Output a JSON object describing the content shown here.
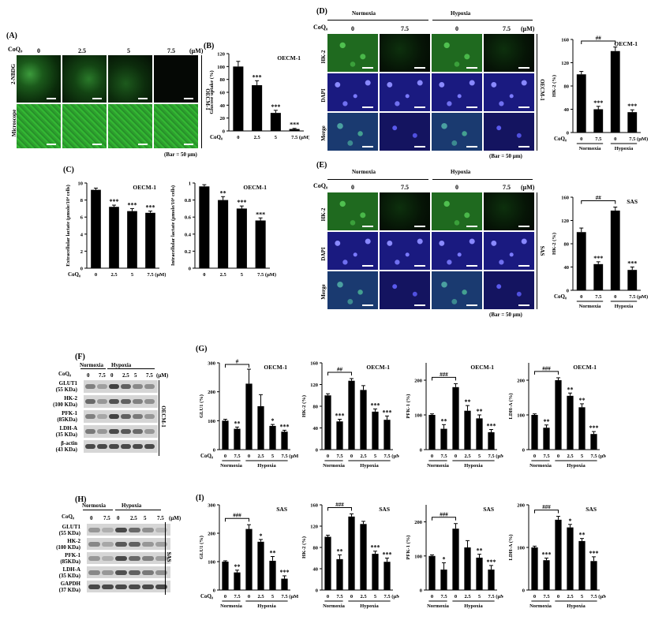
{
  "panelA": {
    "label": "(A)",
    "coq_label": "CoQ₀",
    "concs": [
      "0",
      "2.5",
      "5",
      "7.5"
    ],
    "unit": "(μM)",
    "rows": [
      "2-NBDG",
      "Microscope"
    ],
    "cell_line": "OECM-1",
    "bar": "(Bar = 50 μm)"
  },
  "panelB": {
    "label": "(B)",
    "title": "OECM-1",
    "ylabel": "Glucose uptake (%)",
    "coq_label": "CoQ₀",
    "categories": [
      "0",
      "2.5",
      "5",
      "7.5 (μM)"
    ],
    "sig": [
      "",
      "***",
      "***",
      "***"
    ]
  },
  "panelC": {
    "label": "(C)",
    "left_title": "OECM-1",
    "left_ylabel": "Extracellular lactate (μmole/10⁴ cells)",
    "right_title": "OECM-1",
    "right_ylabel": "Intracellular lactate (μmole/10⁴ cells)",
    "coq_label": "CoQ₀",
    "categories": [
      "0",
      "2.5",
      "5",
      "7.5 (μM)"
    ],
    "left_sig": [
      "",
      "***",
      "***",
      "***"
    ],
    "right_sig": [
      "",
      "**",
      "***",
      "***"
    ]
  },
  "panelD": {
    "label": "(D)",
    "normoxia": "Normoxia",
    "hypoxia": "Hypoxia",
    "coq_label": "CoQ₀",
    "concs": [
      "0",
      "7.5",
      "0",
      "7.5"
    ],
    "unit": "(μM)",
    "rows": [
      "HK-2",
      "DAPI",
      "Merge"
    ],
    "cell_line": "OECM-1",
    "bar": "(Bar = 50 μm)",
    "chart_title": "OECM-1",
    "chart_ylabel": "HK-2 (%)",
    "chart_x": [
      "0",
      "7.5",
      "0",
      "7.5 (μM)"
    ],
    "chart_groups": [
      "Normoxia",
      "Hypoxia"
    ],
    "bracket": "##",
    "sig": [
      "",
      "***",
      "",
      "***"
    ]
  },
  "panelE": {
    "label": "(E)",
    "normoxia": "Normoxia",
    "hypoxia": "Hypoxia",
    "coq_label": "CoQ₀",
    "concs": [
      "0",
      "7.5",
      "0",
      "7.5"
    ],
    "unit": "(μM)",
    "rows": [
      "HK-2",
      "DAPI",
      "Merge"
    ],
    "cell_line": "SAS",
    "bar": "(Bar = 50 μm)",
    "chart_title": "SAS",
    "chart_ylabel": "HK-2 (%)",
    "chart_x": [
      "0",
      "7.5",
      "0",
      "7.5 (μM)"
    ],
    "chart_groups": [
      "Normoxia",
      "Hypoxia"
    ],
    "bracket": "##",
    "sig": [
      "",
      "***",
      "",
      "***"
    ]
  },
  "panelF": {
    "label": "(F)",
    "normoxia": "Normoxia",
    "hypoxia": "Hypoxia",
    "coq_label": "CoQ₀",
    "concs": [
      "0",
      "7.5",
      "0",
      "2.5",
      "5",
      "7.5"
    ],
    "unit": "(μM)",
    "proteins": [
      "GLUT1",
      "HK-2",
      "PFK-1",
      "LDH-A",
      "β-actin"
    ],
    "sizes": [
      "(55 KDa)",
      "(100 KDa)",
      "(85KDa)",
      "(35 KDa)",
      "(43 KDa)"
    ],
    "cell_line": "OECM-1"
  },
  "panelH": {
    "label": "(H)",
    "normoxia": "Normoxia",
    "hypoxia": "Hypoxia",
    "coq_label": "CoQ₀",
    "concs": [
      "0",
      "7.5",
      "0",
      "2.5",
      "5",
      "7.5"
    ],
    "unit": "(μM)",
    "proteins": [
      "GLUT1",
      "HK-2",
      "PFK-1",
      "LDH-A",
      "GAPDH"
    ],
    "sizes": [
      "(55 KDa)",
      "(100 KDa)",
      "(85KDa)",
      "(35 KDa)",
      "(37 KDa)"
    ],
    "cell_line": "SAS"
  },
  "panelG": {
    "label": "(G)",
    "coq_label": "CoQ₀",
    "x": [
      "0",
      "7.5",
      "0",
      "2.5",
      "5",
      "7.5 (μM)"
    ],
    "groups": [
      "Normoxia",
      "Hypoxia"
    ],
    "charts": [
      {
        "title": "OECM-1",
        "ylabel": "GLU1 (%)",
        "bracket": "#",
        "sig": [
          "",
          "**",
          "",
          "",
          "*",
          "***"
        ]
      },
      {
        "title": "OECM-1",
        "ylabel": "HK-2 (%)",
        "bracket": "##",
        "sig": [
          "",
          "***",
          "",
          "",
          "***",
          "***"
        ]
      },
      {
        "title": "OECM-1",
        "ylabel": "PFK-1 (%)",
        "bracket": "###",
        "sig": [
          "",
          "**",
          "",
          "**",
          "**",
          "***"
        ]
      },
      {
        "title": "OECM-1",
        "ylabel": "LDH-A (%)",
        "bracket": "###",
        "sig": [
          "",
          "**",
          "",
          "**",
          "**",
          "***"
        ]
      }
    ]
  },
  "panelI": {
    "label": "(I)",
    "coq_label": "CoQ₀",
    "x": [
      "0",
      "7.5",
      "0",
      "2.5",
      "5",
      "7.5 (μM)"
    ],
    "groups": [
      "Normoxia",
      "Hypoxia"
    ],
    "charts": [
      {
        "title": "SAS",
        "ylabel": "GLU1 (%)",
        "bracket": "###",
        "sig": [
          "",
          "**",
          "",
          "*",
          "**",
          "***"
        ]
      },
      {
        "title": "SAS",
        "ylabel": "HK-2 (%)",
        "bracket": "###",
        "sig": [
          "",
          "**",
          "",
          "",
          "***",
          "***"
        ]
      },
      {
        "title": "SAS",
        "ylabel": "PFK-1 (%)",
        "bracket": "###",
        "sig": [
          "",
          "*",
          "",
          "",
          "**",
          "***"
        ]
      },
      {
        "title": "SAS",
        "ylabel": "LDH-A (%)",
        "bracket": "###",
        "sig": [
          "",
          "***",
          "",
          "*",
          "**",
          "***"
        ]
      }
    ]
  },
  "chart_data": [
    {
      "type": "bar",
      "panel": "B",
      "categories": [
        "0",
        "2.5",
        "5",
        "7.5"
      ],
      "values": [
        100,
        71,
        28,
        3
      ],
      "errors": [
        8,
        7,
        4,
        1
      ],
      "ylim": [
        0,
        120
      ],
      "yticks": [
        0,
        20,
        40,
        60,
        80,
        100,
        120
      ]
    },
    {
      "type": "bar",
      "panel": "C-left",
      "categories": [
        "0",
        "2.5",
        "5",
        "7.5"
      ],
      "values": [
        9.2,
        7.2,
        6.7,
        6.5
      ],
      "errors": [
        0.2,
        0.2,
        0.3,
        0.2
      ],
      "ylim": [
        0,
        10
      ],
      "yticks": [
        0,
        2,
        4,
        6,
        8,
        10
      ]
    },
    {
      "type": "bar",
      "panel": "C-right",
      "categories": [
        "0",
        "2.5",
        "5",
        "7.5"
      ],
      "values": [
        0.96,
        0.8,
        0.7,
        0.56
      ],
      "errors": [
        0.02,
        0.04,
        0.03,
        0.03
      ],
      "ylim": [
        0,
        1.0
      ],
      "yticks": [
        0.0,
        0.2,
        0.4,
        0.6,
        0.8,
        1.0
      ]
    },
    {
      "type": "bar",
      "panel": "D",
      "categories": [
        "0",
        "7.5",
        "0",
        "7.5"
      ],
      "values": [
        100,
        40,
        140,
        35
      ],
      "errors": [
        5,
        5,
        7,
        4
      ],
      "ylim": [
        0,
        160
      ],
      "yticks": [
        0,
        40,
        80,
        120,
        160
      ]
    },
    {
      "type": "bar",
      "panel": "E",
      "categories": [
        "0",
        "7.5",
        "0",
        "7.5"
      ],
      "values": [
        100,
        45,
        137,
        35
      ],
      "errors": [
        7,
        4,
        6,
        5
      ],
      "ylim": [
        0,
        160
      ],
      "yticks": [
        0,
        40,
        80,
        120,
        160
      ]
    },
    {
      "type": "bar",
      "panel": "G-GLU1",
      "categories": [
        "0",
        "7.5",
        "0",
        "2.5",
        "5",
        "7.5"
      ],
      "values": [
        100,
        72,
        228,
        150,
        82,
        62
      ],
      "errors": [
        5,
        6,
        50,
        40,
        5,
        5
      ],
      "ylim": [
        0,
        300
      ],
      "yticks": [
        0,
        100,
        200,
        300
      ]
    },
    {
      "type": "bar",
      "panel": "G-HK2",
      "categories": [
        "0",
        "7.5",
        "0",
        "2.5",
        "5",
        "7.5"
      ],
      "values": [
        100,
        52,
        127,
        110,
        70,
        55
      ],
      "errors": [
        3,
        4,
        4,
        8,
        5,
        7
      ],
      "ylim": [
        0,
        160
      ],
      "yticks": [
        0,
        40,
        80,
        120,
        160
      ]
    },
    {
      "type": "bar",
      "panel": "G-PFK1",
      "categories": [
        "0",
        "7.5",
        "0",
        "2.5",
        "5",
        "7.5"
      ],
      "values": [
        100,
        60,
        180,
        112,
        90,
        50
      ],
      "errors": [
        3,
        12,
        10,
        15,
        10,
        8
      ],
      "ylim": [
        0,
        250
      ],
      "yticks": [
        0,
        100,
        200
      ]
    },
    {
      "type": "bar",
      "panel": "G-LDHA",
      "categories": [
        "0",
        "7.5",
        "0",
        "2.5",
        "5",
        "7.5"
      ],
      "values": [
        100,
        63,
        200,
        155,
        122,
        45
      ],
      "errors": [
        3,
        8,
        7,
        8,
        10,
        7
      ],
      "ylim": [
        0,
        250
      ],
      "yticks": [
        0,
        100,
        200
      ]
    },
    {
      "type": "bar",
      "panel": "I-GLU1",
      "categories": [
        "0",
        "7.5",
        "0",
        "2.5",
        "5",
        "7.5"
      ],
      "values": [
        100,
        62,
        215,
        170,
        103,
        40
      ],
      "errors": [
        3,
        8,
        15,
        8,
        15,
        10
      ],
      "ylim": [
        0,
        300
      ],
      "yticks": [
        0,
        100,
        200,
        300
      ]
    },
    {
      "type": "bar",
      "panel": "I-HK2",
      "categories": [
        "0",
        "7.5",
        "0",
        "2.5",
        "5",
        "7.5"
      ],
      "values": [
        100,
        58,
        138,
        124,
        68,
        53
      ],
      "errors": [
        3,
        8,
        5,
        5,
        5,
        7
      ],
      "ylim": [
        0,
        160
      ],
      "yticks": [
        0,
        40,
        80,
        120,
        160
      ]
    },
    {
      "type": "bar",
      "panel": "I-PFK1",
      "categories": [
        "0",
        "7.5",
        "0",
        "2.5",
        "5",
        "7.5"
      ],
      "values": [
        100,
        60,
        180,
        125,
        95,
        60
      ],
      "errors": [
        3,
        20,
        15,
        20,
        10,
        12
      ],
      "ylim": [
        0,
        250
      ],
      "yticks": [
        0,
        100,
        200
      ]
    },
    {
      "type": "bar",
      "panel": "I-LDHA",
      "categories": [
        "0",
        "7.5",
        "0",
        "2.5",
        "5",
        "7.5"
      ],
      "values": [
        100,
        70,
        165,
        147,
        115,
        68
      ],
      "errors": [
        3,
        5,
        8,
        7,
        6,
        10
      ],
      "ylim": [
        0,
        200
      ],
      "yticks": [
        0,
        100,
        200
      ]
    }
  ]
}
